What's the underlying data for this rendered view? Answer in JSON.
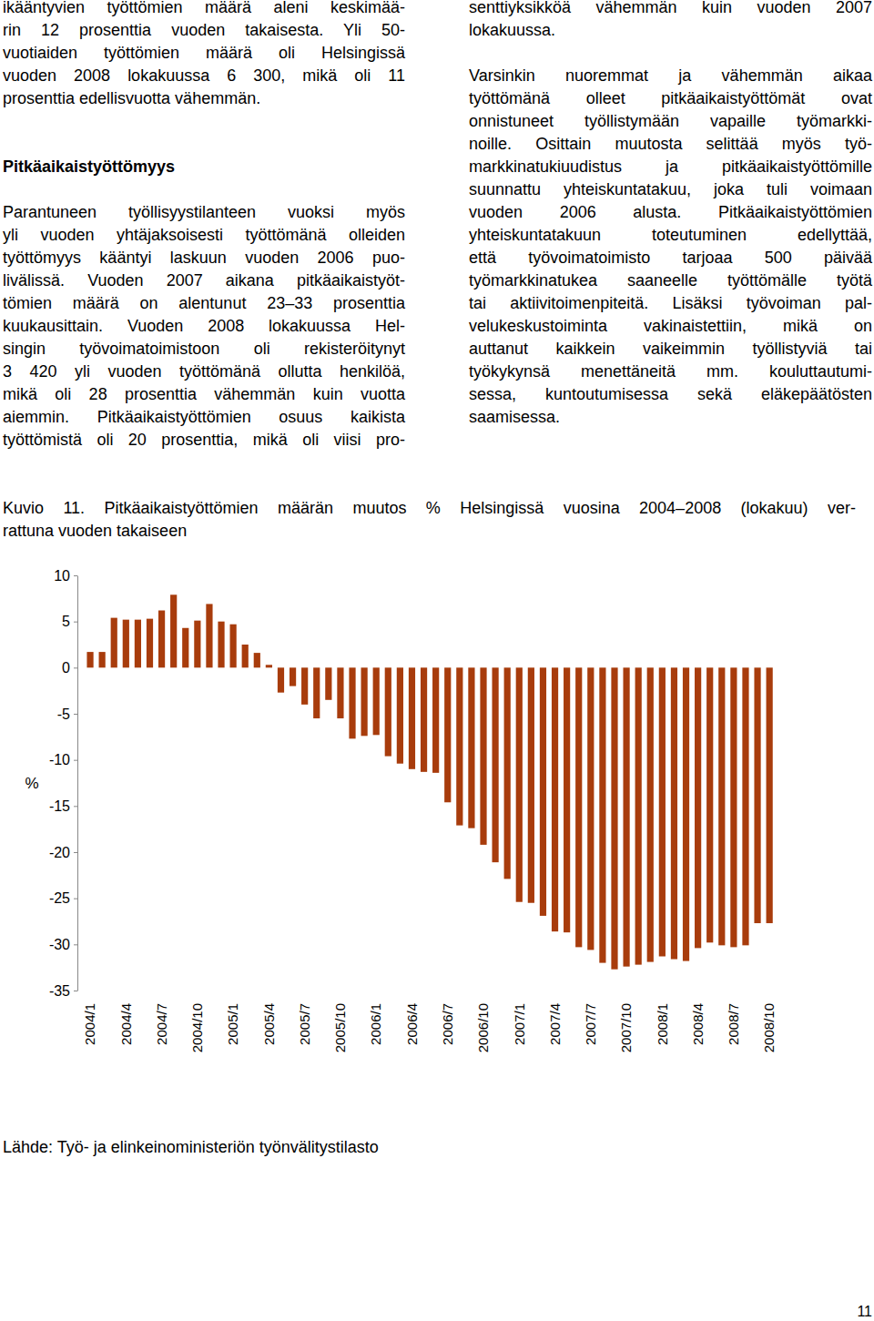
{
  "body": [
    {
      "lines": [
        "ikääntyvien työttömien määrä aleni keskimää-",
        "rin 12 prosenttia vuoden takaisesta. Yli 50-",
        "vuotiaiden työttömien määrä oli Helsingissä",
        "vuoden 2008 lokakuussa 6 300, mikä oli 11",
        "prosenttia edellisvuotta vähemmän."
      ]
    },
    {
      "heading": "Pitkäaikaistyöttömyys"
    },
    {
      "lines": [
        "Parantuneen työllisyystilanteen vuoksi myös",
        "yli vuoden yhtäjaksoisesti työttömänä olleiden",
        "työttömyys kääntyi laskuun vuoden 2006 puo-",
        "livälissä. Vuoden 2007 aikana pitkäaikaistyöt-",
        "tömien määrä on alentunut 23–33 prosenttia",
        "kuukausittain. Vuoden 2008 lokakuussa Hel-",
        "singin työvoimatoimistoon oli rekisteröitynyt",
        "3 420 yli vuoden työttömänä ollutta henkilöä,",
        "mikä oli 28 prosenttia vähemmän kuin vuotta",
        "aiemmin. Pitkäaikaistyöttömien osuus kaikista",
        "työttömistä oli 20 prosenttia, mikä oli viisi pro-",
        "senttiyksikköä vähemmän kuin vuoden 2007",
        "lokakuussa."
      ]
    },
    {
      "lines": [
        "Varsinkin nuoremmat ja vähemmän aikaa",
        "työttömänä olleet pitkäaikaistyöttömät ovat",
        "onnistuneet työllistymään vapaille työmarkki-",
        "noille. Osittain muutosta selittää myös työ-",
        "markkinatukiuudistus ja pitkäaikaistyöttömille",
        "suunnattu yhteiskuntatakuu, joka tuli voimaan",
        "vuoden 2006 alusta. Pitkäaikaistyöttömien",
        "yhteiskuntatakuun toteutuminen edellyttää,",
        "että työvoimatoimisto tarjoaa 500 päivää",
        "työmarkkinatukea saaneelle työttömälle työtä",
        "tai aktiivitoimenpiteitä. Lisäksi työvoiman pal-",
        "velukeskustoiminta vakinaistettiin, mikä on",
        "auttanut kaikkein vaikeimmin työllistyviä tai",
        "työkykynsä menettäneitä mm. kouluttautumi-",
        "sessa, kuntoutumisessa sekä eläkepäätösten",
        "saamisessa."
      ]
    }
  ],
  "figure": {
    "caption_lines": [
      "Kuvio 11. Pitkäaikaistyöttömien määrän muutos % Helsingissä vuosina 2004–2008 (lokakuu) ver-",
      "rattuna vuoden takaiseen"
    ],
    "source": "Lähde: Työ- ja elinkeinoministeriön työnvälitystilasto"
  },
  "chart_data": {
    "type": "bar",
    "ylabel": "%",
    "categories": [
      "2004/1",
      null,
      null,
      "2004/4",
      null,
      null,
      "2004/7",
      null,
      null,
      "2004/10",
      null,
      null,
      "2005/1",
      null,
      null,
      "2005/4",
      null,
      null,
      "2005/7",
      null,
      null,
      "2005/10",
      null,
      null,
      "2006/1",
      null,
      null,
      "2006/4",
      null,
      null,
      "2006/7",
      null,
      null,
      "2006/10",
      null,
      null,
      "2007/1",
      null,
      null,
      "2007/4",
      null,
      null,
      "2007/7",
      null,
      null,
      "2007/10",
      null,
      null,
      "2008/1",
      null,
      null,
      "2008/4",
      null,
      null,
      "2008/7",
      null,
      null,
      "2008/10"
    ],
    "values": [
      1.7,
      1.7,
      5.4,
      5.2,
      5.2,
      5.3,
      6.2,
      7.9,
      4.3,
      5.1,
      6.9,
      5.0,
      4.7,
      2.5,
      1.6,
      0.3,
      -2.7,
      -2.0,
      -4.0,
      -5.5,
      -3.5,
      -5.5,
      -7.7,
      -7.4,
      -7.3,
      -9.6,
      -10.4,
      -11.0,
      -11.3,
      -11.4,
      -14.6,
      -17.1,
      -17.4,
      -19.2,
      -21.1,
      -22.9,
      -25.4,
      -25.5,
      -26.9,
      -28.6,
      -28.7,
      -30.3,
      -30.6,
      -32.0,
      -32.7,
      -32.4,
      -32.2,
      -31.9,
      -31.3,
      -31.6,
      -31.8,
      -30.4,
      -29.8,
      -30.1,
      -30.3,
      -30.1,
      -27.7,
      -27.7
    ],
    "color": "#a83c0c",
    "ylim": [
      -35,
      10
    ],
    "yticks": [
      -35,
      -30,
      -25,
      -20,
      -15,
      -10,
      -5,
      0,
      5,
      10
    ],
    "grid": false
  },
  "page_number": "11"
}
